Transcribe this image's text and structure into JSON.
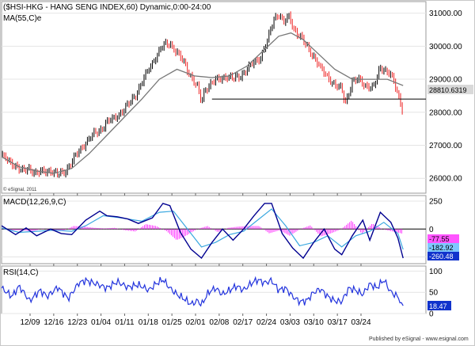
{
  "chart_data": [
    {
      "panel": "price",
      "type": "candlestick",
      "title": "($HSI-HKG - HANG SENG INDEX,60) Dynamic,0:00-24:00",
      "indicator_label": "MA(55,C)e",
      "watermark": "© eSignal, 2011",
      "ylim": [
        25550,
        31350
      ],
      "yticks": [
        "31000.00",
        "30000.00",
        "29000.00",
        "28000.00",
        "27000.00",
        "26000.00"
      ],
      "last_value_tag": "28810.6319",
      "x_categories": [
        "12/09",
        "12/16",
        "12/23",
        "01/04",
        "01/11",
        "01/18",
        "01/25",
        "02/01",
        "02/08",
        "02/17",
        "02/24",
        "03/03",
        "03/10",
        "03/17",
        "03/24"
      ],
      "close_path": [
        [
          0,
          26700
        ],
        [
          4,
          26500
        ],
        [
          8,
          26400
        ],
        [
          12,
          26200
        ],
        [
          16,
          26300
        ],
        [
          20,
          26150
        ],
        [
          24,
          26200
        ],
        [
          28,
          26250
        ],
        [
          32,
          26100
        ],
        [
          36,
          26200
        ],
        [
          40,
          26500
        ],
        [
          44,
          26800
        ],
        [
          48,
          27100
        ],
        [
          52,
          27300
        ],
        [
          56,
          27450
        ],
        [
          60,
          27700
        ],
        [
          64,
          27800
        ],
        [
          68,
          28000
        ],
        [
          72,
          28200
        ],
        [
          76,
          28500
        ],
        [
          80,
          28900
        ],
        [
          84,
          29300
        ],
        [
          88,
          29700
        ],
        [
          92,
          30000
        ],
        [
          96,
          30100
        ],
        [
          100,
          29800
        ],
        [
          104,
          29500
        ],
        [
          108,
          29100
        ],
        [
          112,
          28700
        ],
        [
          114,
          28300
        ],
        [
          116,
          28700
        ],
        [
          120,
          28900
        ],
        [
          124,
          29000
        ],
        [
          128,
          29100
        ],
        [
          132,
          29000
        ],
        [
          136,
          29100
        ],
        [
          140,
          29300
        ],
        [
          144,
          29500
        ],
        [
          148,
          29700
        ],
        [
          152,
          30200
        ],
        [
          155,
          30800
        ],
        [
          158,
          31000
        ],
        [
          161,
          30700
        ],
        [
          164,
          30900
        ],
        [
          167,
          30500
        ],
        [
          170,
          30300
        ],
        [
          174,
          30000
        ],
        [
          178,
          29700
        ],
        [
          182,
          29300
        ],
        [
          186,
          29100
        ],
        [
          190,
          28800
        ],
        [
          194,
          28700
        ],
        [
          196,
          28300
        ],
        [
          200,
          28900
        ],
        [
          204,
          29000
        ],
        [
          208,
          28800
        ],
        [
          212,
          28700
        ],
        [
          216,
          29400
        ],
        [
          218,
          29300
        ],
        [
          222,
          29100
        ],
        [
          224,
          28900
        ],
        [
          227,
          28400
        ],
        [
          229,
          28000
        ]
      ],
      "ma_path": [
        [
          0,
          26650
        ],
        [
          10,
          26350
        ],
        [
          20,
          26220
        ],
        [
          30,
          26150
        ],
        [
          40,
          26300
        ],
        [
          50,
          26750
        ],
        [
          60,
          27300
        ],
        [
          70,
          27850
        ],
        [
          80,
          28400
        ],
        [
          90,
          29000
        ],
        [
          100,
          29300
        ],
        [
          110,
          29100
        ],
        [
          120,
          29050
        ],
        [
          130,
          29100
        ],
        [
          140,
          29400
        ],
        [
          150,
          29900
        ],
        [
          158,
          30300
        ],
        [
          165,
          30400
        ],
        [
          172,
          30200
        ],
        [
          180,
          29800
        ],
        [
          190,
          29300
        ],
        [
          200,
          29000
        ],
        [
          210,
          29000
        ],
        [
          220,
          29000
        ],
        [
          229,
          28810
        ]
      ],
      "neckline": {
        "x": [
          120,
          242
        ],
        "y": 28400
      },
      "x_max": 242
    },
    {
      "panel": "macd",
      "type": "line+bar",
      "indicator_label": "MACD(12,26,9,C)",
      "ylim": [
        -310,
        300
      ],
      "yticks": [
        "250",
        "0",
        "-250"
      ],
      "value_tags": [
        "-77.55",
        "-182.92",
        "-260.48"
      ],
      "macd_path": [
        [
          0,
          30
        ],
        [
          8,
          -50
        ],
        [
          14,
          10
        ],
        [
          20,
          -60
        ],
        [
          28,
          0
        ],
        [
          34,
          -40
        ],
        [
          40,
          -50
        ],
        [
          48,
          80
        ],
        [
          56,
          160
        ],
        [
          60,
          120
        ],
        [
          66,
          110
        ],
        [
          72,
          90
        ],
        [
          78,
          50
        ],
        [
          86,
          100
        ],
        [
          92,
          230
        ],
        [
          96,
          210
        ],
        [
          102,
          -30
        ],
        [
          108,
          -180
        ],
        [
          114,
          -260
        ],
        [
          120,
          -120
        ],
        [
          126,
          0
        ],
        [
          132,
          -100
        ],
        [
          138,
          0
        ],
        [
          144,
          120
        ],
        [
          150,
          230
        ],
        [
          154,
          230
        ],
        [
          160,
          -40
        ],
        [
          166,
          -170
        ],
        [
          172,
          -260
        ],
        [
          178,
          -120
        ],
        [
          184,
          0
        ],
        [
          190,
          -180
        ],
        [
          194,
          -230
        ],
        [
          200,
          -60
        ],
        [
          206,
          80
        ],
        [
          210,
          -100
        ],
        [
          216,
          150
        ],
        [
          222,
          60
        ],
        [
          226,
          -80
        ],
        [
          229,
          -260
        ]
      ],
      "signal_path": [
        [
          0,
          10
        ],
        [
          10,
          -30
        ],
        [
          20,
          -20
        ],
        [
          30,
          -10
        ],
        [
          40,
          -20
        ],
        [
          48,
          30
        ],
        [
          58,
          120
        ],
        [
          68,
          100
        ],
        [
          80,
          70
        ],
        [
          90,
          150
        ],
        [
          98,
          160
        ],
        [
          106,
          0
        ],
        [
          114,
          -160
        ],
        [
          122,
          -120
        ],
        [
          130,
          -50
        ],
        [
          138,
          -20
        ],
        [
          146,
          80
        ],
        [
          154,
          180
        ],
        [
          162,
          30
        ],
        [
          170,
          -150
        ],
        [
          178,
          -120
        ],
        [
          186,
          -60
        ],
        [
          194,
          -160
        ],
        [
          202,
          -60
        ],
        [
          210,
          -20
        ],
        [
          218,
          60
        ],
        [
          226,
          -40
        ],
        [
          229,
          -183
        ]
      ],
      "histogram": [
        20,
        -20,
        -20,
        -40,
        10,
        -30,
        -30,
        50,
        40,
        20,
        10,
        20,
        -20,
        -40,
        80,
        50,
        -30,
        -180,
        -100,
        0,
        50,
        -50,
        20,
        40,
        50,
        50,
        -70,
        -20,
        -110,
        0,
        60,
        -120,
        -70,
        0,
        140,
        -80,
        90,
        0,
        -40,
        -77
      ]
    },
    {
      "panel": "rsi",
      "type": "line",
      "indicator_label": "RSI(14,C)",
      "ylim": [
        0,
        112
      ],
      "yticks": [
        "100",
        "50",
        "0"
      ],
      "last_value_tag": "18.47",
      "rsi_path": [
        [
          0,
          60
        ],
        [
          6,
          40
        ],
        [
          10,
          65
        ],
        [
          16,
          30
        ],
        [
          22,
          55
        ],
        [
          26,
          40
        ],
        [
          32,
          62
        ],
        [
          38,
          35
        ],
        [
          44,
          72
        ],
        [
          48,
          78
        ],
        [
          54,
          70
        ],
        [
          60,
          60
        ],
        [
          66,
          75
        ],
        [
          72,
          62
        ],
        [
          78,
          68
        ],
        [
          84,
          55
        ],
        [
          88,
          70
        ],
        [
          92,
          80
        ],
        [
          96,
          60
        ],
        [
          100,
          45
        ],
        [
          104,
          35
        ],
        [
          108,
          22
        ],
        [
          112,
          30
        ],
        [
          114,
          20
        ],
        [
          118,
          50
        ],
        [
          122,
          60
        ],
        [
          126,
          45
        ],
        [
          130,
          55
        ],
        [
          134,
          65
        ],
        [
          138,
          55
        ],
        [
          142,
          70
        ],
        [
          146,
          80
        ],
        [
          150,
          72
        ],
        [
          154,
          78
        ],
        [
          158,
          55
        ],
        [
          162,
          60
        ],
        [
          166,
          40
        ],
        [
          170,
          28
        ],
        [
          174,
          30
        ],
        [
          178,
          50
        ],
        [
          182,
          58
        ],
        [
          186,
          40
        ],
        [
          190,
          30
        ],
        [
          194,
          28
        ],
        [
          198,
          60
        ],
        [
          202,
          55
        ],
        [
          206,
          45
        ],
        [
          210,
          70
        ],
        [
          214,
          60
        ],
        [
          218,
          80
        ],
        [
          222,
          50
        ],
        [
          226,
          40
        ],
        [
          229,
          18.47
        ]
      ]
    }
  ],
  "footer": {
    "text": "Published by eSignal - www.esignal.com"
  },
  "colors": {
    "background": "#ffffff",
    "up_candle": "#000000",
    "down_candle": "#ee2222",
    "ma_line": "#777777",
    "macd_line": "#000090",
    "signal_line": "#3aa8e0",
    "histogram": "#ff33ff",
    "rsi_line": "#2233dd",
    "tag_blue": "#1133cc"
  }
}
